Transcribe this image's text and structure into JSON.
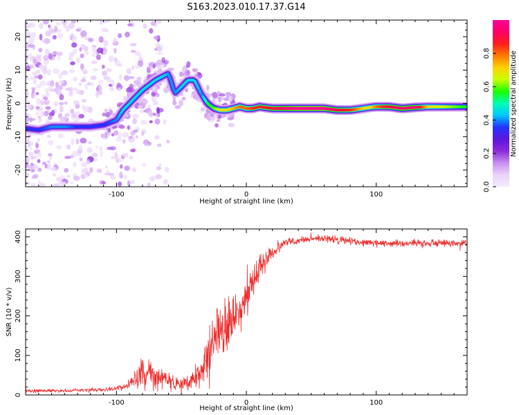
{
  "figure": {
    "title": "S163.2023.010.17.37.G14"
  },
  "chart_data": [
    {
      "type": "heatmap",
      "xlabel": "Height of straight line (km)",
      "ylabel": "Frequency (Hz)",
      "xlim": [
        -170,
        170
      ],
      "ylim": [
        -25,
        25
      ],
      "x_ticks": [
        -100,
        0,
        100
      ],
      "y_ticks": [
        -20,
        -10,
        0,
        10,
        20
      ],
      "colorbar": {
        "label": "Normalized spectral amplitude",
        "ticks": [
          "0.0",
          "0.2",
          "0.4",
          "0.6",
          "0.8"
        ],
        "range": [
          0,
          1
        ],
        "colors": [
          "#f4eafc",
          "#ead2fa",
          "#c88ef0",
          "#8d2bd9",
          "#5c17dc",
          "#2233ff",
          "#00c8ff",
          "#00ffb4",
          "#1aff00",
          "#c8ff00",
          "#ffd200",
          "#ff7a00",
          "#ff1e1e",
          "#ff0064",
          "#ff0096"
        ]
      },
      "ridge": {
        "x": [
          -170,
          -160,
          -150,
          -140,
          -130,
          -120,
          -110,
          -100,
          -95,
          -90,
          -85,
          -80,
          -75,
          -70,
          -65,
          -60,
          -55,
          -50,
          -45,
          -40,
          -35,
          -30,
          -25,
          -20,
          -15,
          -10,
          -5,
          0,
          5,
          10,
          20,
          30,
          40,
          50,
          60,
          70,
          80,
          90,
          95,
          100,
          110,
          120,
          130,
          140,
          150,
          160,
          170
        ],
        "y": [
          -7.5,
          -8,
          -7,
          -7,
          -7,
          -7,
          -6.5,
          -5,
          -2,
          0,
          2,
          4,
          5.5,
          7,
          8,
          9,
          3,
          5,
          7,
          7,
          3,
          0,
          -1.5,
          -2,
          -2,
          -1.5,
          -1,
          -1.5,
          -1.5,
          -1,
          -1.5,
          -1.5,
          -1.5,
          -1.5,
          -1.5,
          -2,
          -2,
          -1.5,
          -1.2,
          -1,
          -1,
          -1.5,
          -1.2,
          -1,
          -1,
          -1,
          -1
        ],
        "amplitude": [
          0.35,
          0.35,
          0.4,
          0.4,
          0.35,
          0.35,
          0.35,
          0.4,
          0.45,
          0.45,
          0.45,
          0.45,
          0.45,
          0.45,
          0.45,
          0.4,
          0.4,
          0.45,
          0.45,
          0.45,
          0.4,
          0.55,
          0.6,
          0.7,
          0.7,
          0.75,
          0.8,
          0.8,
          0.85,
          0.85,
          0.88,
          0.95,
          1.0,
          1.0,
          1.0,
          0.9,
          0.85,
          0.7,
          0.7,
          0.8,
          0.9,
          0.95,
          0.95,
          0.7,
          0.65,
          0.6,
          0.55
        ]
      }
    },
    {
      "type": "line",
      "xlabel": "Height of straight line (km)",
      "ylabel": "SNR (10 * v/v)",
      "xlim": [
        -170,
        170
      ],
      "ylim": [
        0,
        420
      ],
      "x_ticks": [
        -100,
        0,
        100
      ],
      "y_ticks": [
        0,
        100,
        200,
        300,
        400
      ],
      "series": [
        {
          "color": "#ee2b2b",
          "envelope": {
            "x": [
              -170,
              -140,
              -110,
              -95,
              -90,
              -85,
              -80,
              -75,
              -70,
              -60,
              -50,
              -40,
              -35,
              -30,
              -25,
              -20,
              -15,
              -10,
              -5,
              0,
              5,
              10,
              15,
              20,
              25,
              30,
              40,
              50,
              60,
              80,
              100,
              120,
              140,
              160,
              170
            ],
            "mean": [
              10,
              11,
              13,
              18,
              30,
              45,
              60,
              55,
              45,
              35,
              25,
              40,
              60,
              100,
              140,
              170,
              180,
              190,
              220,
              250,
              290,
              320,
              340,
              360,
              375,
              385,
              392,
              395,
              395,
              390,
              385,
              383,
              385,
              385,
              383
            ],
            "spread": [
              6,
              6,
              6,
              10,
              20,
              35,
              50,
              55,
              40,
              35,
              20,
              40,
              60,
              80,
              100,
              120,
              110,
              100,
              90,
              80,
              70,
              55,
              40,
              25,
              20,
              15,
              14,
              13,
              13,
              14,
              14,
              14,
              14,
              14,
              14
            ]
          }
        }
      ]
    }
  ]
}
